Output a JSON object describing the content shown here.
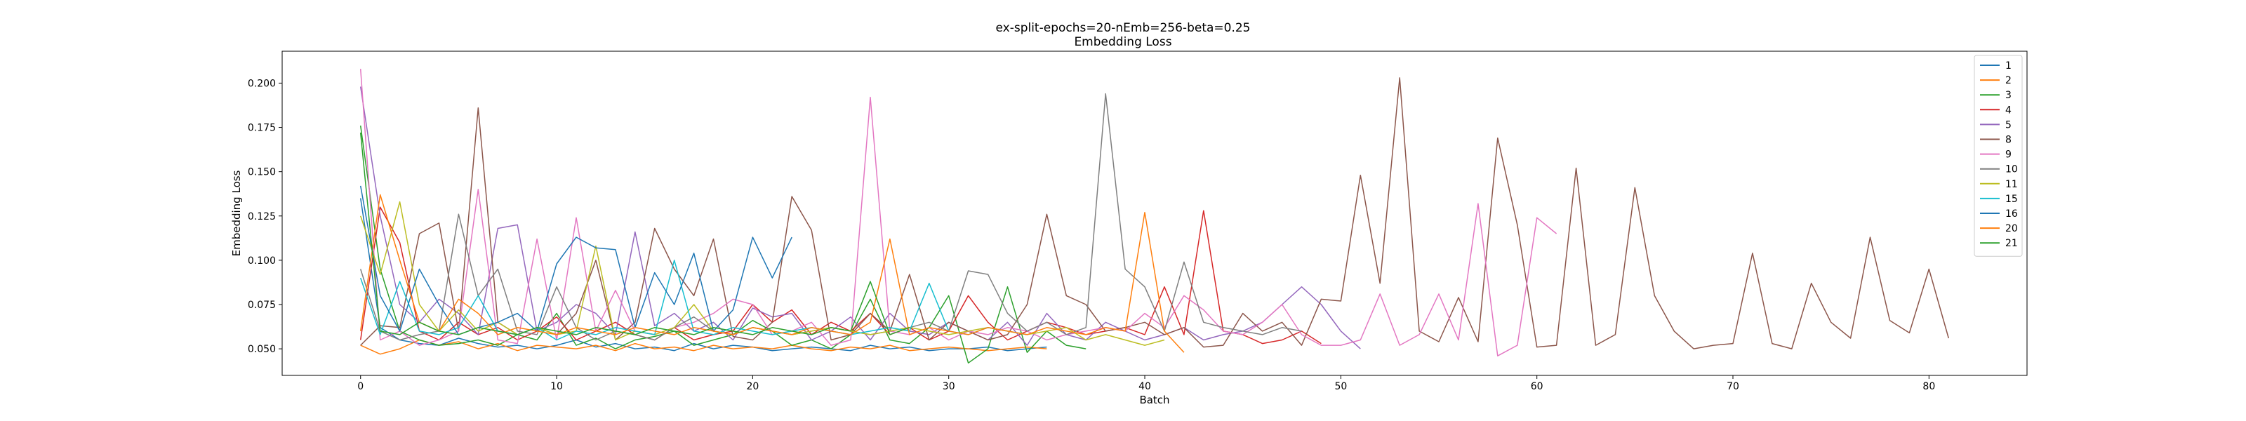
{
  "chart_data": {
    "type": "line",
    "suptitle": "ex-split-epochs=20-nEmb=256-beta=0.25",
    "title": "Embedding Loss",
    "xlabel": "Batch",
    "ylabel": "Embedding Loss",
    "xlim": [
      -4,
      85
    ],
    "ylim": [
      0.035,
      0.218
    ],
    "xticks": [
      0,
      10,
      20,
      30,
      40,
      50,
      60,
      70,
      80
    ],
    "yticks": [
      0.05,
      0.075,
      0.1,
      0.125,
      0.15,
      0.175,
      0.2
    ],
    "ytick_labels": [
      "0.050",
      "0.075",
      "0.100",
      "0.125",
      "0.150",
      "0.175",
      "0.200"
    ],
    "grid": false,
    "legend_position": "top-right",
    "series": [
      {
        "name": "1",
        "color": "#1f77b4",
        "values": [
          0.135,
          0.062,
          0.055,
          0.053,
          0.052,
          0.056,
          0.053,
          0.051,
          0.052,
          0.05,
          0.052,
          0.055,
          0.051,
          0.053,
          0.05,
          0.051,
          0.049,
          0.053,
          0.05,
          0.052,
          0.051,
          0.049,
          0.05,
          0.051,
          0.05,
          0.049,
          0.052,
          0.05,
          0.051,
          0.049,
          0.05,
          0.05,
          0.051,
          0.049,
          0.05,
          0.051
        ]
      },
      {
        "name": "2",
        "color": "#ff7f0e",
        "values": [
          0.052,
          0.047,
          0.05,
          0.055,
          0.052,
          0.054,
          0.05,
          0.053,
          0.049,
          0.052,
          0.051,
          0.05,
          0.052,
          0.049,
          0.053,
          0.05,
          0.051,
          0.049,
          0.052,
          0.05,
          0.051,
          0.05,
          0.052,
          0.05,
          0.049,
          0.051,
          0.05,
          0.052,
          0.049,
          0.05,
          0.051,
          0.05,
          0.049,
          0.05,
          0.051,
          0.05
        ]
      },
      {
        "name": "3",
        "color": "#2ca02c",
        "values": [
          0.176,
          0.095,
          0.06,
          0.055,
          0.052,
          0.053,
          0.055,
          0.052,
          0.058,
          0.055,
          0.07,
          0.052,
          0.056,
          0.05,
          0.055,
          0.057,
          0.06,
          0.052,
          0.055,
          0.058,
          0.066,
          0.06,
          0.052,
          0.055,
          0.05,
          0.058,
          0.078,
          0.055,
          0.053,
          0.062,
          0.08,
          0.042,
          0.05,
          0.085,
          0.048,
          0.06,
          0.052,
          0.05
        ]
      },
      {
        "name": "4",
        "color": "#d62728",
        "values": [
          0.055,
          0.13,
          0.11,
          0.06,
          0.055,
          0.065,
          0.058,
          0.062,
          0.055,
          0.06,
          0.068,
          0.055,
          0.06,
          0.065,
          0.058,
          0.055,
          0.062,
          0.055,
          0.058,
          0.06,
          0.075,
          0.065,
          0.072,
          0.058,
          0.065,
          0.06,
          0.07,
          0.058,
          0.062,
          0.055,
          0.06,
          0.08,
          0.065,
          0.055,
          0.06,
          0.065,
          0.062,
          0.058,
          0.06,
          0.062,
          0.058,
          0.085,
          0.058,
          0.128,
          0.06,
          0.058,
          0.053,
          0.055,
          0.06,
          0.053
        ]
      },
      {
        "name": "5",
        "color": "#9467bd",
        "values": [
          0.198,
          0.125,
          0.075,
          0.065,
          0.078,
          0.07,
          0.058,
          0.118,
          0.12,
          0.06,
          0.065,
          0.075,
          0.07,
          0.058,
          0.116,
          0.063,
          0.07,
          0.06,
          0.065,
          0.055,
          0.073,
          0.068,
          0.07,
          0.055,
          0.06,
          0.068,
          0.055,
          0.07,
          0.06,
          0.058,
          0.065,
          0.06,
          0.055,
          0.065,
          0.052,
          0.07,
          0.058,
          0.055,
          0.065,
          0.06,
          0.055,
          0.058,
          0.062,
          0.055,
          0.058,
          0.06,
          0.065,
          0.075,
          0.085,
          0.075,
          0.06,
          0.05
        ]
      },
      {
        "name": "8",
        "color": "#8c564b",
        "values": [
          0.052,
          0.063,
          0.062,
          0.115,
          0.121,
          0.06,
          0.186,
          0.065,
          0.058,
          0.062,
          0.058,
          0.07,
          0.1,
          0.055,
          0.065,
          0.118,
          0.095,
          0.08,
          0.112,
          0.057,
          0.055,
          0.065,
          0.136,
          0.117,
          0.055,
          0.058,
          0.07,
          0.06,
          0.092,
          0.055,
          0.065,
          0.06,
          0.055,
          0.058,
          0.075,
          0.126,
          0.08,
          0.075,
          0.06,
          0.062,
          0.065,
          0.058,
          0.062,
          0.051,
          0.052,
          0.07,
          0.06,
          0.065,
          0.052,
          0.078,
          0.077,
          0.148,
          0.087,
          0.203,
          0.06,
          0.054,
          0.079,
          0.054,
          0.169,
          0.12,
          0.051,
          0.052,
          0.152,
          0.052,
          0.058,
          0.141,
          0.08,
          0.06,
          0.05,
          0.052,
          0.053,
          0.104,
          0.053,
          0.05,
          0.087,
          0.065,
          0.056,
          0.113,
          0.066,
          0.059,
          0.095,
          0.056
        ]
      },
      {
        "name": "9",
        "color": "#e377c2",
        "values": [
          0.208,
          0.055,
          0.06,
          0.052,
          0.055,
          0.06,
          0.14,
          0.055,
          0.053,
          0.112,
          0.055,
          0.124,
          0.06,
          0.083,
          0.06,
          0.058,
          0.062,
          0.065,
          0.07,
          0.078,
          0.075,
          0.058,
          0.06,
          0.065,
          0.052,
          0.055,
          0.192,
          0.06,
          0.058,
          0.062,
          0.055,
          0.06,
          0.058,
          0.062,
          0.06,
          0.055,
          0.058,
          0.06,
          0.062,
          0.06,
          0.07,
          0.062,
          0.08,
          0.072,
          0.06,
          0.058,
          0.065,
          0.075,
          0.058,
          0.052,
          0.052,
          0.055,
          0.081,
          0.052,
          0.058,
          0.081,
          0.055,
          0.132,
          0.046,
          0.052,
          0.124,
          0.115
        ]
      },
      {
        "name": "10",
        "color": "#7f7f7f",
        "values": [
          0.095,
          0.06,
          0.055,
          0.058,
          0.06,
          0.126,
          0.08,
          0.095,
          0.06,
          0.058,
          0.085,
          0.062,
          0.055,
          0.06,
          0.058,
          0.055,
          0.062,
          0.068,
          0.06,
          0.058,
          0.062,
          0.06,
          0.058,
          0.06,
          0.062,
          0.06,
          0.058,
          0.06,
          0.062,
          0.065,
          0.06,
          0.094,
          0.092,
          0.07,
          0.06,
          0.065,
          0.058,
          0.062,
          0.194,
          0.095,
          0.085,
          0.06,
          0.099,
          0.065,
          0.062,
          0.06,
          0.058,
          0.062,
          0.06
        ]
      },
      {
        "name": "11",
        "color": "#bcbd22",
        "values": [
          0.125,
          0.092,
          0.133,
          0.075,
          0.06,
          0.072,
          0.06,
          0.065,
          0.058,
          0.062,
          0.058,
          0.06,
          0.108,
          0.055,
          0.06,
          0.058,
          0.062,
          0.075,
          0.06,
          0.058,
          0.062,
          0.06,
          0.058,
          0.06,
          0.062,
          0.06,
          0.058,
          0.06,
          0.062,
          0.06,
          0.058,
          0.06,
          0.062,
          0.06,
          0.058,
          0.06,
          0.062,
          0.055,
          0.058,
          0.055,
          0.052,
          0.055
        ]
      },
      {
        "name": "15",
        "color": "#17becf",
        "values": [
          0.09,
          0.058,
          0.088,
          0.06,
          0.058,
          0.062,
          0.08,
          0.06,
          0.058,
          0.062,
          0.055,
          0.06,
          0.058,
          0.062,
          0.06,
          0.058,
          0.1,
          0.06,
          0.058,
          0.062,
          0.06,
          0.058,
          0.06,
          0.062,
          0.06,
          0.058,
          0.06,
          0.062,
          0.06,
          0.087,
          0.06,
          0.058,
          0.062,
          0.06,
          0.058
        ]
      },
      {
        "name": "16",
        "color": "#1f77b4",
        "values": [
          0.142,
          0.08,
          0.06,
          0.095,
          0.075,
          0.058,
          0.062,
          0.065,
          0.07,
          0.06,
          0.098,
          0.113,
          0.107,
          0.106,
          0.062,
          0.093,
          0.075,
          0.104,
          0.06,
          0.072,
          0.113,
          0.09,
          0.113
        ]
      },
      {
        "name": "20",
        "color": "#ff7f0e",
        "values": [
          0.06,
          0.137,
          0.1,
          0.065,
          0.06,
          0.078,
          0.07,
          0.058,
          0.062,
          0.06,
          0.058,
          0.062,
          0.06,
          0.058,
          0.062,
          0.06,
          0.058,
          0.062,
          0.06,
          0.058,
          0.062,
          0.06,
          0.058,
          0.062,
          0.06,
          0.058,
          0.065,
          0.112,
          0.058,
          0.062,
          0.06,
          0.058,
          0.062,
          0.06,
          0.058,
          0.062,
          0.06,
          0.058,
          0.062,
          0.06,
          0.127,
          0.06,
          0.048
        ]
      },
      {
        "name": "21",
        "color": "#2ca02c",
        "values": [
          0.172,
          0.06,
          0.058,
          0.065,
          0.06,
          0.058,
          0.062,
          0.06,
          0.058,
          0.062,
          0.06,
          0.058,
          0.062,
          0.06,
          0.058,
          0.062,
          0.06,
          0.058,
          0.062,
          0.06,
          0.058,
          0.062,
          0.06,
          0.058,
          0.062,
          0.06,
          0.088,
          0.058,
          0.062
        ]
      }
    ]
  }
}
